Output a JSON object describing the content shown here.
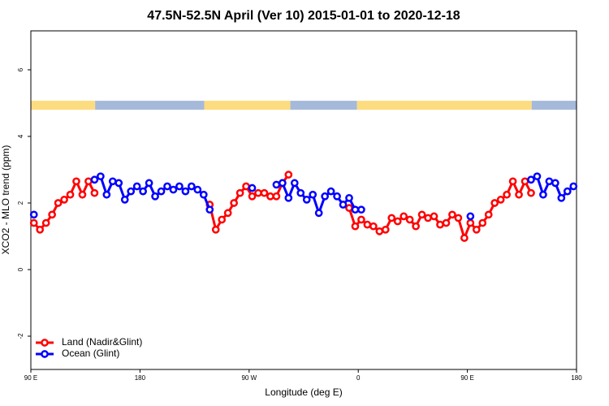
{
  "chart_data": {
    "type": "line",
    "title": "47.5N-52.5N April (Ver 10)   2015-01-01 to 2020-12-18",
    "x_label": "Longitude (deg E)",
    "y_label": "XCO2 - MLO trend (ppm)",
    "xlim": [
      90,
      540
    ],
    "ylim": [
      -3,
      7.17
    ],
    "xticks": [
      {
        "value": 90,
        "label": "90 E"
      },
      180,
      {
        "value": 270,
        "label": "90 W"
      },
      {
        "value": 360,
        "label": "0"
      },
      {
        "value": 450,
        "label": "90 E"
      },
      {
        "value": 540,
        "label": "180"
      }
    ],
    "yticks": [
      -2,
      0,
      2,
      4,
      6
    ],
    "legend": "bottom-left",
    "x": [
      92.5,
      97.5,
      102.5,
      107.5,
      112.5,
      117.5,
      122.5,
      127.5,
      132.5,
      137.5,
      142.5,
      147.5,
      152.5,
      157.5,
      162.5,
      167.5,
      172.5,
      177.5,
      182.5,
      187.5,
      192.5,
      197.5,
      202.5,
      207.5,
      212.5,
      217.5,
      222.5,
      227.5,
      232.5,
      237.5,
      242.5,
      247.5,
      252.5,
      257.5,
      262.5,
      267.5,
      272.5,
      277.5,
      282.5,
      287.5,
      292.5,
      297.5,
      302.5,
      307.5,
      312.5,
      317.5,
      322.5,
      327.5,
      332.5,
      337.5,
      342.5,
      347.5,
      352.5,
      357.5,
      362.5,
      367.5,
      372.5,
      377.5,
      382.5,
      387.5,
      392.5,
      397.5,
      402.5,
      407.5,
      412.5,
      417.5,
      422.5,
      427.5,
      432.5,
      437.5,
      442.5,
      447.5,
      452.5,
      457.5,
      462.5,
      467.5,
      472.5,
      477.5,
      482.5,
      487.5,
      492.5,
      497.5,
      502.5,
      507.5,
      512.5,
      517.5,
      522.5,
      527.5,
      532.5,
      537.5
    ],
    "series": [
      {
        "name": "Land (Nadir&Glint)",
        "color": "#ff0000",
        "values": [
          1.4,
          1.2,
          1.4,
          1.65,
          2.0,
          2.1,
          2.25,
          2.65,
          2.25,
          2.65,
          2.3,
          null,
          null,
          null,
          null,
          null,
          null,
          null,
          null,
          null,
          null,
          null,
          null,
          null,
          null,
          null,
          null,
          null,
          null,
          1.95,
          1.2,
          1.5,
          1.7,
          2.0,
          2.3,
          2.5,
          2.2,
          2.3,
          2.3,
          2.2,
          2.2,
          2.6,
          2.85,
          null,
          null,
          null,
          null,
          null,
          null,
          null,
          null,
          null,
          1.85,
          1.3,
          1.5,
          1.35,
          1.3,
          1.15,
          1.2,
          1.55,
          1.45,
          1.6,
          1.5,
          1.3,
          1.65,
          1.55,
          1.6,
          1.35,
          1.4,
          1.65,
          1.55,
          0.95,
          1.4,
          1.2,
          1.4,
          1.65,
          2.0,
          2.1,
          2.25,
          2.65,
          2.25,
          2.65,
          2.3,
          null,
          null,
          null,
          null,
          null,
          null,
          null
        ]
      },
      {
        "name": "Ocean (Glint)",
        "color": "#0000ff",
        "values": [
          1.65,
          null,
          null,
          null,
          null,
          null,
          null,
          null,
          null,
          null,
          2.7,
          2.8,
          2.25,
          2.65,
          2.6,
          2.1,
          2.35,
          2.5,
          2.35,
          2.6,
          2.2,
          2.35,
          2.5,
          2.4,
          2.5,
          2.35,
          2.5,
          2.4,
          2.25,
          1.8,
          null,
          null,
          null,
          null,
          null,
          null,
          2.45,
          null,
          null,
          null,
          2.55,
          2.6,
          2.15,
          2.6,
          2.3,
          2.1,
          2.25,
          1.7,
          2.2,
          2.35,
          2.2,
          1.95,
          2.15,
          1.8,
          1.8,
          null,
          null,
          null,
          null,
          null,
          null,
          null,
          null,
          null,
          null,
          null,
          null,
          null,
          null,
          null,
          null,
          null,
          1.6,
          null,
          null,
          null,
          null,
          null,
          null,
          null,
          null,
          null,
          2.7,
          2.8,
          2.25,
          2.65,
          2.6,
          2.15,
          2.35,
          2.5
        ]
      }
    ],
    "surface_strip": {
      "ylim": [
        4.8,
        5.07
      ],
      "segments": [
        {
          "from": 90,
          "to": 143,
          "color": "#fddc7f"
        },
        {
          "from": 143,
          "to": 233,
          "color": "#a5b9da"
        },
        {
          "from": 233,
          "to": 304,
          "color": "#fddc7f"
        },
        {
          "from": 304,
          "to": 359,
          "color": "#a5b9da"
        },
        {
          "from": 359,
          "to": 503,
          "color": "#fddc7f"
        },
        {
          "from": 503,
          "to": 540,
          "color": "#a5b9da"
        }
      ]
    }
  }
}
